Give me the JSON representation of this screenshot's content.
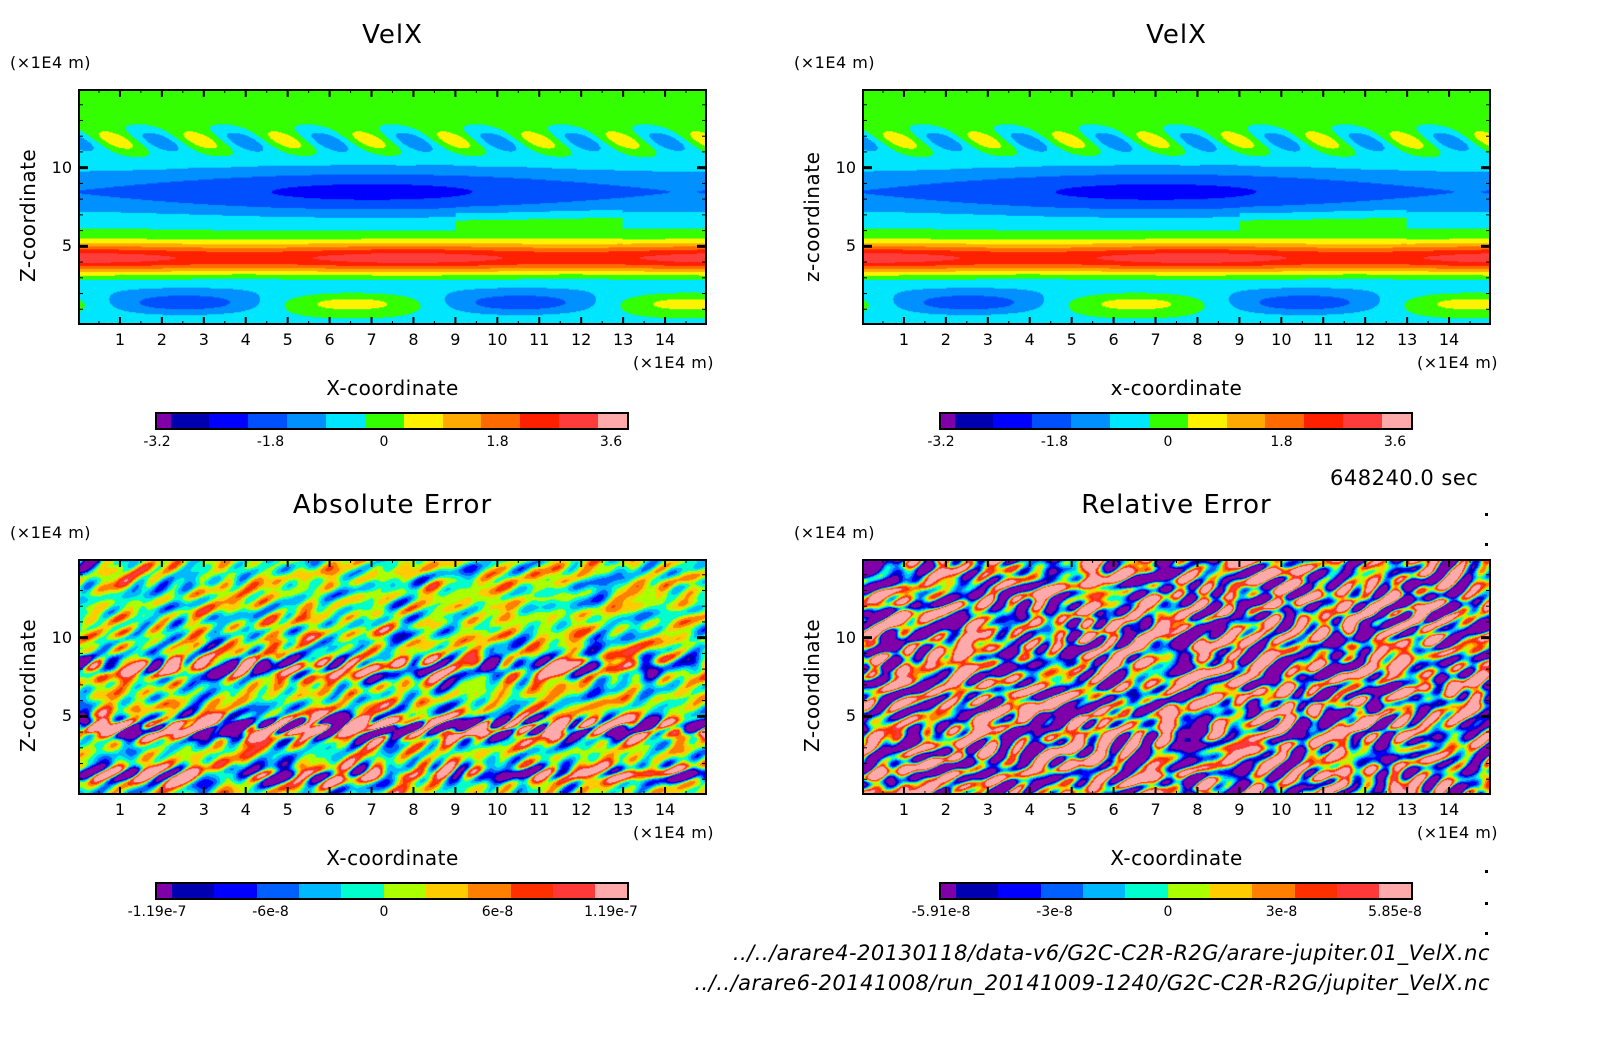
{
  "chart_data": [
    {
      "type": "heatmap",
      "id": "velx-1",
      "title": "VelX",
      "xlabel": "X-coordinate",
      "ylabel": "Z-coordinate",
      "x_unit": "(×1E4 m)",
      "y_unit": "(×1E4 m)",
      "xlim": [
        0,
        15
      ],
      "ylim": [
        0,
        15
      ],
      "x_ticks": [
        "1",
        "2",
        "3",
        "4",
        "5",
        "6",
        "7",
        "8",
        "9",
        "10",
        "11",
        "12",
        "13",
        "14"
      ],
      "y_ticks": [
        "5",
        "10"
      ],
      "pattern": "smooth",
      "colorbar": {
        "min": -3.2,
        "max": 3.6,
        "tick_labels": [
          "-3.2",
          "-1.8",
          "0",
          "1.8",
          "3.6"
        ],
        "colors": [
          "#7f00a8",
          "#0000b0",
          "#0000ff",
          "#0050ff",
          "#0090ff",
          "#00e6ff",
          "#33ff00",
          "#fff200",
          "#ffaa00",
          "#ff6a00",
          "#ff2000",
          "#ff3c3c",
          "#ffaaaa"
        ]
      }
    },
    {
      "type": "heatmap",
      "id": "velx-2",
      "title": "VelX",
      "xlabel": "x-coordinate",
      "ylabel": "z-coordinate",
      "x_unit": "(×1E4 m)",
      "y_unit": "(×1E4 m)",
      "xlim": [
        0,
        15
      ],
      "ylim": [
        0,
        15
      ],
      "x_ticks": [
        "1",
        "2",
        "3",
        "4",
        "5",
        "6",
        "7",
        "8",
        "9",
        "10",
        "11",
        "12",
        "13",
        "14"
      ],
      "y_ticks": [
        "5",
        "10"
      ],
      "pattern": "smooth",
      "colorbar": {
        "min": -3.2,
        "max": 3.6,
        "tick_labels": [
          "-3.2",
          "-1.8",
          "0",
          "1.8",
          "3.6"
        ],
        "colors": [
          "#7f00a8",
          "#0000b0",
          "#0000ff",
          "#0050ff",
          "#0090ff",
          "#00e6ff",
          "#33ff00",
          "#fff200",
          "#ffaa00",
          "#ff6a00",
          "#ff2000",
          "#ff3c3c",
          "#ffaaaa"
        ]
      }
    },
    {
      "type": "heatmap",
      "id": "absolute-error",
      "title": "Absolute Error",
      "xlabel": "X-coordinate",
      "ylabel": "Z-coordinate",
      "x_unit": "(×1E4 m)",
      "y_unit": "(×1E4 m)",
      "xlim": [
        0,
        15
      ],
      "ylim": [
        0,
        15
      ],
      "x_ticks": [
        "1",
        "2",
        "3",
        "4",
        "5",
        "6",
        "7",
        "8",
        "9",
        "10",
        "11",
        "12",
        "13",
        "14"
      ],
      "y_ticks": [
        "5",
        "10"
      ],
      "pattern": "noise-banded",
      "colorbar": {
        "min": -1.19e-07,
        "max": 1.19e-07,
        "tick_labels": [
          "-1.19e-7",
          "-6e-8",
          "0",
          "6e-8",
          "1.19e-7"
        ],
        "colors": [
          "#7f00a8",
          "#0000b0",
          "#0000ff",
          "#0060ff",
          "#00b8ff",
          "#00ffcc",
          "#aaff00",
          "#ffcc00",
          "#ff8000",
          "#ff3000",
          "#ff3838",
          "#ffaaaa"
        ]
      }
    },
    {
      "type": "heatmap",
      "id": "relative-error",
      "title": "Relative Error",
      "xlabel": "X-coordinate",
      "ylabel": "Z-coordinate",
      "x_unit": "(×1E4 m)",
      "y_unit": "(×1E4 m)",
      "xlim": [
        0,
        15
      ],
      "ylim": [
        0,
        15
      ],
      "x_ticks": [
        "1",
        "2",
        "3",
        "4",
        "5",
        "6",
        "7",
        "8",
        "9",
        "10",
        "11",
        "12",
        "13",
        "14"
      ],
      "y_ticks": [
        "5",
        "10"
      ],
      "pattern": "noise-uniform",
      "colorbar": {
        "min": -5.91e-08,
        "max": 5.85e-08,
        "tick_labels": [
          "-5.91e-8",
          "-3e-8",
          "0",
          "3e-8",
          "5.85e-8"
        ],
        "colors": [
          "#7f00a8",
          "#0000b0",
          "#0000ff",
          "#0060ff",
          "#00b8ff",
          "#00ffcc",
          "#aaff00",
          "#ffcc00",
          "#ff8000",
          "#ff3000",
          "#ff3838",
          "#ffaaaa"
        ]
      }
    }
  ],
  "time_label": "648240.0 sec",
  "file_paths": [
    "../../arare4-20130118/data-v6/G2C-C2R-R2G/arare-jupiter.01_VelX.nc",
    "../../arare6-20141008/run_20141009-1240/G2C-C2R-R2G/jupiter_VelX.nc"
  ]
}
